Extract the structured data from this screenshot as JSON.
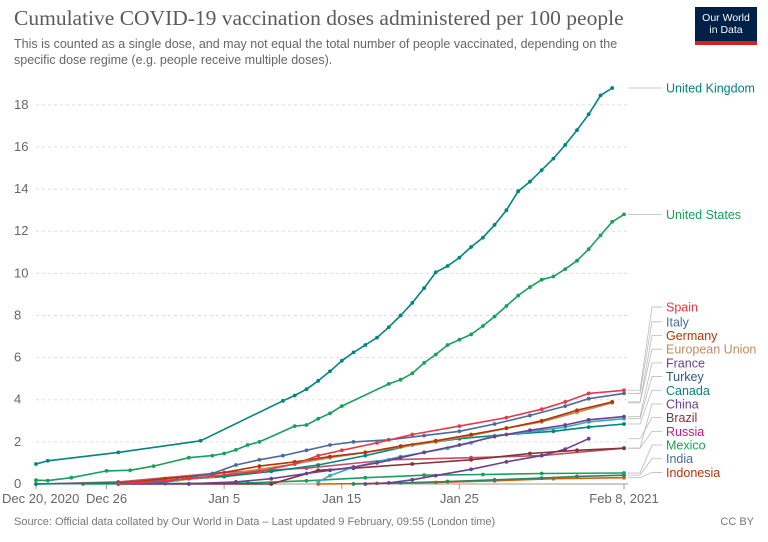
{
  "header": {
    "title": "Cumulative COVID-19 vaccination doses administered per 100 people",
    "subtitle": "This is counted as a single dose, and may not equal the total number of people vaccinated, depending on the specific dose regime (e.g. people receive multiple doses).",
    "logo_line1": "Our World",
    "logo_line2": "in Data"
  },
  "footer": {
    "source": "Source: Official data collated by Our World in Data – Last updated 9 February, 09:55 (London time)",
    "license": "CC BY"
  },
  "chart_data": {
    "type": "line",
    "title": "Cumulative COVID-19 vaccination doses administered per 100 people",
    "xlabel": "",
    "ylabel": "",
    "x_axis": {
      "start": "2020-12-20",
      "end": "2021-02-08",
      "ticks": [
        {
          "date": "2020-12-20",
          "label": "Dec 20, 2020"
        },
        {
          "date": "2020-12-26",
          "label": "Dec 26"
        },
        {
          "date": "2021-01-05",
          "label": "Jan 5"
        },
        {
          "date": "2021-01-15",
          "label": "Jan 15"
        },
        {
          "date": "2021-01-25",
          "label": "Jan 25"
        },
        {
          "date": "2021-02-08",
          "label": "Feb 8, 2021"
        }
      ]
    },
    "ylim": [
      0,
      18.8
    ],
    "yticks": [
      0,
      2,
      4,
      6,
      8,
      10,
      12,
      14,
      16,
      18
    ],
    "grid": "horizontal-dashed",
    "legend": "right-end-labels",
    "series": [
      {
        "name": "United Kingdom",
        "color": "#00847e",
        "points": [
          [
            "2020-12-20",
            0.95
          ],
          [
            "2020-12-21",
            1.1
          ],
          [
            "2020-12-27",
            1.5
          ],
          [
            "2021-01-03",
            2.05
          ],
          [
            "2021-01-10",
            3.95
          ],
          [
            "2021-01-11",
            4.2
          ],
          [
            "2021-01-12",
            4.5
          ],
          [
            "2021-01-13",
            4.9
          ],
          [
            "2021-01-14",
            5.35
          ],
          [
            "2021-01-15",
            5.85
          ],
          [
            "2021-01-16",
            6.25
          ],
          [
            "2021-01-17",
            6.6
          ],
          [
            "2021-01-18",
            6.95
          ],
          [
            "2021-01-19",
            7.45
          ],
          [
            "2021-01-20",
            8.0
          ],
          [
            "2021-01-21",
            8.6
          ],
          [
            "2021-01-22",
            9.3
          ],
          [
            "2021-01-23",
            10.05
          ],
          [
            "2021-01-24",
            10.35
          ],
          [
            "2021-01-25",
            10.75
          ],
          [
            "2021-01-26",
            11.25
          ],
          [
            "2021-01-27",
            11.7
          ],
          [
            "2021-01-28",
            12.3
          ],
          [
            "2021-01-29",
            13.0
          ],
          [
            "2021-01-30",
            13.9
          ],
          [
            "2021-01-31",
            14.35
          ],
          [
            "2021-02-01",
            14.9
          ],
          [
            "2021-02-02",
            15.45
          ],
          [
            "2021-02-03",
            16.1
          ],
          [
            "2021-02-04",
            16.8
          ],
          [
            "2021-02-05",
            17.55
          ],
          [
            "2021-02-06",
            18.45
          ],
          [
            "2021-02-07",
            18.8
          ]
        ]
      },
      {
        "name": "United States",
        "color": "#18a05a",
        "points": [
          [
            "2020-12-20",
            0.18
          ],
          [
            "2020-12-21",
            0.16
          ],
          [
            "2020-12-23",
            0.3
          ],
          [
            "2020-12-26",
            0.62
          ],
          [
            "2020-12-28",
            0.65
          ],
          [
            "2020-12-30",
            0.85
          ],
          [
            "2021-01-02",
            1.25
          ],
          [
            "2021-01-04",
            1.35
          ],
          [
            "2021-01-05",
            1.45
          ],
          [
            "2021-01-06",
            1.62
          ],
          [
            "2021-01-07",
            1.85
          ],
          [
            "2021-01-08",
            2.0
          ],
          [
            "2021-01-11",
            2.75
          ],
          [
            "2021-01-12",
            2.8
          ],
          [
            "2021-01-13",
            3.1
          ],
          [
            "2021-01-14",
            3.35
          ],
          [
            "2021-01-15",
            3.7
          ],
          [
            "2021-01-19",
            4.75
          ],
          [
            "2021-01-20",
            4.95
          ],
          [
            "2021-01-21",
            5.25
          ],
          [
            "2021-01-22",
            5.75
          ],
          [
            "2021-01-23",
            6.15
          ],
          [
            "2021-01-24",
            6.6
          ],
          [
            "2021-01-25",
            6.85
          ],
          [
            "2021-01-26",
            7.1
          ],
          [
            "2021-01-27",
            7.5
          ],
          [
            "2021-01-28",
            7.95
          ],
          [
            "2021-01-29",
            8.45
          ],
          [
            "2021-01-30",
            8.95
          ],
          [
            "2021-01-31",
            9.35
          ],
          [
            "2021-02-01",
            9.7
          ],
          [
            "2021-02-02",
            9.85
          ],
          [
            "2021-02-03",
            10.2
          ],
          [
            "2021-02-04",
            10.6
          ],
          [
            "2021-02-05",
            11.15
          ],
          [
            "2021-02-06",
            11.8
          ],
          [
            "2021-02-07",
            12.45
          ],
          [
            "2021-02-08",
            12.8
          ]
        ]
      },
      {
        "name": "Spain",
        "color": "#e63946",
        "points": [
          [
            "2020-12-27",
            0.0
          ],
          [
            "2021-01-02",
            0.25
          ],
          [
            "2021-01-08",
            0.6
          ],
          [
            "2021-01-11",
            0.95
          ],
          [
            "2021-01-13",
            1.35
          ],
          [
            "2021-01-15",
            1.6
          ],
          [
            "2021-01-18",
            1.95
          ],
          [
            "2021-01-21",
            2.35
          ],
          [
            "2021-01-25",
            2.75
          ],
          [
            "2021-01-29",
            3.15
          ],
          [
            "2021-02-01",
            3.55
          ],
          [
            "2021-02-03",
            3.9
          ],
          [
            "2021-02-05",
            4.3
          ],
          [
            "2021-02-08",
            4.45
          ]
        ]
      },
      {
        "name": "Italy",
        "color": "#4c6a9c",
        "points": [
          [
            "2020-12-27",
            0.0
          ],
          [
            "2020-12-31",
            0.1
          ],
          [
            "2021-01-04",
            0.5
          ],
          [
            "2021-01-06",
            0.9
          ],
          [
            "2021-01-08",
            1.15
          ],
          [
            "2021-01-10",
            1.35
          ],
          [
            "2021-01-12",
            1.6
          ],
          [
            "2021-01-14",
            1.85
          ],
          [
            "2021-01-16",
            2.0
          ],
          [
            "2021-01-19",
            2.1
          ],
          [
            "2021-01-22",
            2.3
          ],
          [
            "2021-01-25",
            2.5
          ],
          [
            "2021-01-28",
            2.85
          ],
          [
            "2021-01-31",
            3.25
          ],
          [
            "2021-02-03",
            3.7
          ],
          [
            "2021-02-05",
            4.05
          ],
          [
            "2021-02-08",
            4.3
          ]
        ]
      },
      {
        "name": "Germany",
        "color": "#b13507",
        "points": [
          [
            "2020-12-27",
            0.02
          ],
          [
            "2020-12-31",
            0.25
          ],
          [
            "2021-01-04",
            0.45
          ],
          [
            "2021-01-08",
            0.85
          ],
          [
            "2021-01-11",
            1.05
          ],
          [
            "2021-01-14",
            1.3
          ],
          [
            "2021-01-17",
            1.5
          ],
          [
            "2021-01-20",
            1.8
          ],
          [
            "2021-01-23",
            2.05
          ],
          [
            "2021-01-26",
            2.35
          ],
          [
            "2021-01-29",
            2.65
          ],
          [
            "2021-02-01",
            3.0
          ],
          [
            "2021-02-04",
            3.5
          ],
          [
            "2021-02-07",
            3.9
          ]
        ]
      },
      {
        "name": "European Union",
        "color": "#bc8e5a",
        "points": [
          [
            "2020-12-27",
            0.01
          ],
          [
            "2020-12-31",
            0.1
          ],
          [
            "2021-01-04",
            0.35
          ],
          [
            "2021-01-08",
            0.7
          ],
          [
            "2021-01-11",
            0.95
          ],
          [
            "2021-01-14",
            1.25
          ],
          [
            "2021-01-17",
            1.5
          ],
          [
            "2021-01-20",
            1.75
          ],
          [
            "2021-01-23",
            2.0
          ],
          [
            "2021-01-26",
            2.3
          ],
          [
            "2021-01-29",
            2.65
          ],
          [
            "2021-02-01",
            2.95
          ],
          [
            "2021-02-04",
            3.4
          ],
          [
            "2021-02-07",
            3.85
          ]
        ]
      },
      {
        "name": "France",
        "color": "#6d3e91",
        "points": [
          [
            "2020-12-27",
            0.0
          ],
          [
            "2021-01-02",
            0.01
          ],
          [
            "2021-01-06",
            0.1
          ],
          [
            "2021-01-09",
            0.25
          ],
          [
            "2021-01-12",
            0.5
          ],
          [
            "2021-01-14",
            0.65
          ],
          [
            "2021-01-16",
            0.8
          ],
          [
            "2021-01-18",
            1.0
          ],
          [
            "2021-01-20",
            1.25
          ],
          [
            "2021-01-22",
            1.5
          ],
          [
            "2021-01-25",
            1.85
          ],
          [
            "2021-01-28",
            2.25
          ],
          [
            "2021-01-31",
            2.55
          ],
          [
            "2021-02-03",
            2.8
          ],
          [
            "2021-02-05",
            3.05
          ],
          [
            "2021-02-08",
            3.2
          ]
        ]
      },
      {
        "name": "Turkey",
        "color": "#38aaba",
        "points": [
          [
            "2021-01-13",
            0.1
          ],
          [
            "2021-01-14",
            0.4
          ],
          [
            "2021-01-16",
            0.8
          ],
          [
            "2021-01-18",
            1.05
          ],
          [
            "2021-01-20",
            1.3
          ],
          [
            "2021-01-22",
            1.5
          ],
          [
            "2021-01-24",
            1.7
          ],
          [
            "2021-01-26",
            1.95
          ],
          [
            "2021-01-28",
            2.3
          ],
          [
            "2021-01-30",
            2.4
          ],
          [
            "2021-02-01",
            2.55
          ],
          [
            "2021-02-03",
            2.7
          ],
          [
            "2021-02-05",
            2.95
          ],
          [
            "2021-02-08",
            3.1
          ]
        ]
      },
      {
        "name": "Canada",
        "color": "#00847e",
        "points": [
          [
            "2020-12-20",
            0.0
          ],
          [
            "2020-12-27",
            0.05
          ],
          [
            "2021-01-01",
            0.2
          ],
          [
            "2021-01-05",
            0.35
          ],
          [
            "2021-01-09",
            0.6
          ],
          [
            "2021-01-13",
            0.9
          ],
          [
            "2021-01-17",
            1.35
          ],
          [
            "2021-01-21",
            1.85
          ],
          [
            "2021-01-25",
            2.15
          ],
          [
            "2021-01-29",
            2.35
          ],
          [
            "2021-02-02",
            2.5
          ],
          [
            "2021-02-05",
            2.7
          ],
          [
            "2021-02-08",
            2.85
          ]
        ]
      },
      {
        "name": "China",
        "color": "#883039",
        "points": [
          [
            "2020-12-27",
            0.0
          ],
          [
            "2021-01-02",
            0.0
          ],
          [
            "2021-01-09",
            0.0
          ],
          [
            "2021-01-13",
            0.65
          ],
          [
            "2021-01-16",
            0.75
          ],
          [
            "2021-01-21",
            0.95
          ],
          [
            "2021-01-26",
            1.15
          ],
          [
            "2021-01-31",
            1.45
          ],
          [
            "2021-02-04",
            1.6
          ],
          [
            "2021-02-08",
            1.7
          ]
        ]
      },
      {
        "name": "Brazil",
        "color": "#6d3e91",
        "points": [
          [
            "2021-01-17",
            0.0
          ],
          [
            "2021-01-19",
            0.05
          ],
          [
            "2021-01-21",
            0.2
          ],
          [
            "2021-01-23",
            0.4
          ],
          [
            "2021-01-26",
            0.7
          ],
          [
            "2021-01-29",
            1.05
          ],
          [
            "2021-02-01",
            1.35
          ],
          [
            "2021-02-03",
            1.65
          ],
          [
            "2021-02-05",
            2.15
          ]
        ]
      },
      {
        "name": "Russia",
        "color": "#c15065",
        "points": [
          [
            "2020-12-20",
            0.0
          ],
          [
            "2020-12-27",
            0.1
          ],
          [
            "2021-01-05",
            0.55
          ],
          [
            "2021-01-12",
            0.75
          ],
          [
            "2021-01-19",
            1.15
          ],
          [
            "2021-01-26",
            1.25
          ],
          [
            "2021-02-01",
            1.35
          ],
          [
            "2021-02-08",
            1.7
          ]
        ]
      },
      {
        "name": "Mexico",
        "color": "#18a05a",
        "points": [
          [
            "2020-12-24",
            0.0
          ],
          [
            "2020-12-31",
            0.02
          ],
          [
            "2021-01-07",
            0.05
          ],
          [
            "2021-01-12",
            0.15
          ],
          [
            "2021-01-17",
            0.3
          ],
          [
            "2021-01-22",
            0.42
          ],
          [
            "2021-01-27",
            0.45
          ],
          [
            "2021-02-01",
            0.5
          ],
          [
            "2021-02-08",
            0.52
          ]
        ]
      },
      {
        "name": "India",
        "color": "#2c8465",
        "points": [
          [
            "2021-01-16",
            0.0
          ],
          [
            "2021-01-20",
            0.05
          ],
          [
            "2021-01-24",
            0.12
          ],
          [
            "2021-01-28",
            0.2
          ],
          [
            "2021-02-01",
            0.28
          ],
          [
            "2021-02-04",
            0.36
          ],
          [
            "2021-02-08",
            0.42
          ]
        ]
      },
      {
        "name": "Indonesia",
        "color": "#dc5e00",
        "points": [
          [
            "2021-01-13",
            0.0
          ],
          [
            "2021-01-18",
            0.03
          ],
          [
            "2021-01-23",
            0.07
          ],
          [
            "2021-01-28",
            0.15
          ],
          [
            "2021-02-02",
            0.25
          ],
          [
            "2021-02-08",
            0.3
          ]
        ]
      }
    ],
    "labels": [
      {
        "text": "United Kingdom",
        "color": "#00847e",
        "value": 18.8
      },
      {
        "text": "United States",
        "color": "#18a05a",
        "value": 12.8
      },
      {
        "text": "Spain",
        "color": "#e63946",
        "value": 8.4
      },
      {
        "text": "Italy",
        "color": "#4c6a9c",
        "value": 7.7
      },
      {
        "text": "Germany",
        "color": "#b13507",
        "value": 7.05
      },
      {
        "text": "European Union",
        "color": "#bc8e5a",
        "value": 6.4
      },
      {
        "text": "France",
        "color": "#6d3e91",
        "value": 5.75
      },
      {
        "text": "Turkey",
        "color": "#2d5b7a",
        "value": 5.1
      },
      {
        "text": "Canada",
        "color": "#00847e",
        "value": 4.45
      },
      {
        "text": "China",
        "color": "#6d3e91",
        "value": 3.8
      },
      {
        "text": "Brazil",
        "color": "#883039",
        "value": 3.15
      },
      {
        "text": "Russia",
        "color": "#c71585",
        "value": 2.5
      },
      {
        "text": "Mexico",
        "color": "#18a05a",
        "value": 1.85
      },
      {
        "text": "India",
        "color": "#4c6a9c",
        "value": 1.2
      },
      {
        "text": "Indonesia",
        "color": "#b13507",
        "value": 0.55
      }
    ]
  }
}
